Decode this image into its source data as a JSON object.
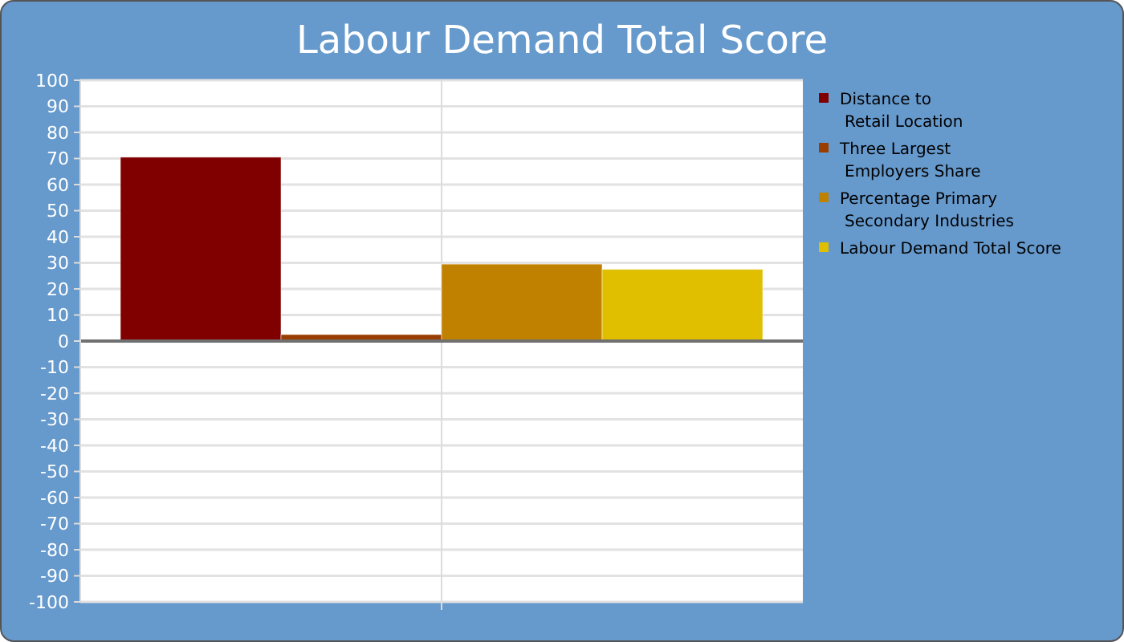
{
  "chart_data": {
    "type": "bar",
    "title": "Labour Demand Total Score",
    "categories": [
      null
    ],
    "series": [
      {
        "name": "Distance to\nRetail Location",
        "color": "#800000",
        "values": [
          70.5
        ]
      },
      {
        "name": "Three Largest\nEmployers Share",
        "color": "#993d00",
        "values": [
          2.5
        ]
      },
      {
        "name": "Percentage Primary\nSecondary Industries",
        "color": "#c08000",
        "values": [
          29.5
        ]
      },
      {
        "name": "Labour Demand Total Score",
        "color": "#e0bf00",
        "values": [
          27.5
        ]
      }
    ],
    "ylim": [
      -100,
      100
    ],
    "yticks": [
      -100,
      -90,
      -80,
      -70,
      -60,
      -50,
      -40,
      -30,
      -20,
      -10,
      0,
      10,
      20,
      30,
      40,
      50,
      60,
      70,
      80,
      90,
      100
    ],
    "grid": true,
    "legend": "right"
  }
}
